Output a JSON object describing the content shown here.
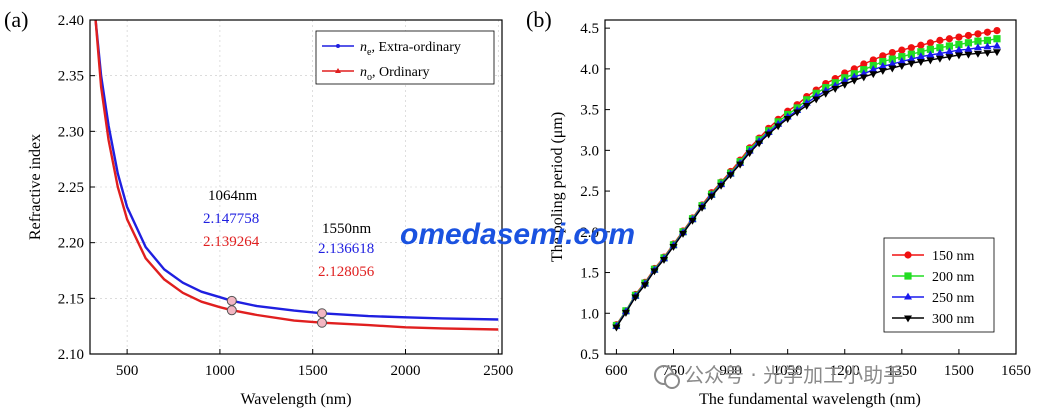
{
  "chart_data": [
    {
      "type": "line",
      "panel_label": "(a)",
      "xlabel": "Wavelength (nm)",
      "ylabel": "Refractive index",
      "xlim": [
        300,
        2520
      ],
      "ylim": [
        2.1,
        2.4
      ],
      "x_ticks": [
        500,
        1000,
        1500,
        2000,
        2500
      ],
      "y_ticks": [
        2.1,
        2.15,
        2.2,
        2.25,
        2.3,
        2.35,
        2.4
      ],
      "legend_position": "top-right",
      "series": [
        {
          "name": "n_e, Extra-ordinary",
          "legend_symbol": "n",
          "legend_sub": "e",
          "legend_rest": ", Extra-ordinary",
          "color": "#1f1fe0",
          "x": [
            330,
            360,
            400,
            450,
            500,
            600,
            700,
            800,
            900,
            1000,
            1064,
            1200,
            1400,
            1550,
            1800,
            2000,
            2200,
            2500
          ],
          "values": [
            2.4,
            2.35,
            2.305,
            2.262,
            2.232,
            2.196,
            2.176,
            2.164,
            2.156,
            2.151,
            2.1478,
            2.143,
            2.139,
            2.1366,
            2.134,
            2.133,
            2.132,
            2.131
          ]
        },
        {
          "name": "n_o, Ordinary",
          "legend_symbol": "n",
          "legend_sub": "o",
          "legend_rest": ", Ordinary",
          "color": "#e01f1f",
          "x": [
            330,
            360,
            400,
            450,
            500,
            600,
            700,
            800,
            900,
            1000,
            1064,
            1200,
            1400,
            1550,
            1800,
            2000,
            2200,
            2500
          ],
          "values": [
            2.4,
            2.34,
            2.292,
            2.25,
            2.221,
            2.186,
            2.167,
            2.155,
            2.147,
            2.142,
            2.1393,
            2.135,
            2.13,
            2.1281,
            2.126,
            2.124,
            2.123,
            2.122
          ]
        }
      ],
      "markers": [
        {
          "series": 0,
          "x": 1064,
          "y": 2.147758
        },
        {
          "series": 1,
          "x": 1064,
          "y": 2.139264
        },
        {
          "series": 0,
          "x": 1550,
          "y": 2.136618
        },
        {
          "series": 1,
          "x": 1550,
          "y": 2.128056
        }
      ],
      "annotations": {
        "a1064": {
          "title": "1064nm",
          "ne": "2.147758",
          "no": "2.139264"
        },
        "a1550": {
          "title": "1550nm",
          "ne": "2.136618",
          "no": "2.128056"
        }
      }
    },
    {
      "type": "line",
      "panel_label": "(b)",
      "xlabel": "The fundamental wavelength (nm)",
      "ylabel": "The poling period (μm)",
      "xlim": [
        570,
        1650
      ],
      "ylim": [
        0.5,
        4.6
      ],
      "x_ticks": [
        600,
        750,
        900,
        1050,
        1200,
        1350,
        1500,
        1650
      ],
      "y_ticks": [
        0.5,
        1.0,
        1.5,
        2.0,
        2.5,
        3.0,
        3.5,
        4.0,
        4.5
      ],
      "legend_position": "bottom-right",
      "x": [
        600,
        625,
        650,
        675,
        700,
        725,
        750,
        775,
        800,
        825,
        850,
        875,
        900,
        925,
        950,
        975,
        1000,
        1025,
        1050,
        1075,
        1100,
        1125,
        1150,
        1175,
        1200,
        1225,
        1250,
        1275,
        1300,
        1325,
        1350,
        1375,
        1400,
        1425,
        1450,
        1475,
        1500,
        1525,
        1550,
        1575,
        1600
      ],
      "series": [
        {
          "name": "150 nm",
          "color": "#f01010",
          "marker": "circle",
          "values": [
            0.86,
            1.03,
            1.23,
            1.38,
            1.55,
            1.69,
            1.85,
            2.01,
            2.17,
            2.33,
            2.48,
            2.61,
            2.74,
            2.88,
            3.03,
            3.15,
            3.27,
            3.38,
            3.48,
            3.56,
            3.66,
            3.74,
            3.82,
            3.88,
            3.95,
            4.0,
            4.06,
            4.11,
            4.16,
            4.2,
            4.23,
            4.26,
            4.29,
            4.32,
            4.35,
            4.37,
            4.39,
            4.41,
            4.43,
            4.45,
            4.47
          ]
        },
        {
          "name": "200 nm",
          "color": "#22dd22",
          "marker": "square",
          "values": [
            0.85,
            1.03,
            1.22,
            1.37,
            1.54,
            1.68,
            1.84,
            2.0,
            2.16,
            2.32,
            2.46,
            2.6,
            2.72,
            2.86,
            3.01,
            3.13,
            3.24,
            3.35,
            3.44,
            3.52,
            3.62,
            3.7,
            3.77,
            3.83,
            3.89,
            3.94,
            3.99,
            4.04,
            4.09,
            4.12,
            4.15,
            4.18,
            4.21,
            4.24,
            4.26,
            4.28,
            4.3,
            4.32,
            4.34,
            4.35,
            4.37
          ]
        },
        {
          "name": "250 nm",
          "color": "#1a1aee",
          "marker": "triangle-up",
          "values": [
            0.84,
            1.02,
            1.21,
            1.36,
            1.53,
            1.67,
            1.83,
            1.99,
            2.15,
            2.31,
            2.45,
            2.58,
            2.71,
            2.84,
            2.99,
            3.11,
            3.22,
            3.32,
            3.41,
            3.49,
            3.58,
            3.66,
            3.73,
            3.79,
            3.85,
            3.9,
            3.94,
            3.99,
            4.03,
            4.06,
            4.09,
            4.12,
            4.15,
            4.17,
            4.19,
            4.21,
            4.23,
            4.24,
            4.26,
            4.27,
            4.28
          ]
        },
        {
          "name": "300 nm",
          "color": "#000000",
          "marker": "triangle-down",
          "values": [
            0.83,
            1.01,
            1.2,
            1.35,
            1.52,
            1.66,
            1.82,
            1.98,
            2.14,
            2.3,
            2.44,
            2.57,
            2.7,
            2.83,
            2.97,
            3.09,
            3.2,
            3.3,
            3.39,
            3.47,
            3.55,
            3.63,
            3.7,
            3.76,
            3.81,
            3.86,
            3.9,
            3.94,
            3.98,
            4.01,
            4.04,
            4.07,
            4.09,
            4.11,
            4.13,
            4.15,
            4.17,
            4.18,
            4.19,
            4.2,
            4.21
          ]
        }
      ]
    }
  ],
  "watermark": {
    "text": "omedasemi.com",
    "source": "公众号 · 光学加工小助手"
  }
}
